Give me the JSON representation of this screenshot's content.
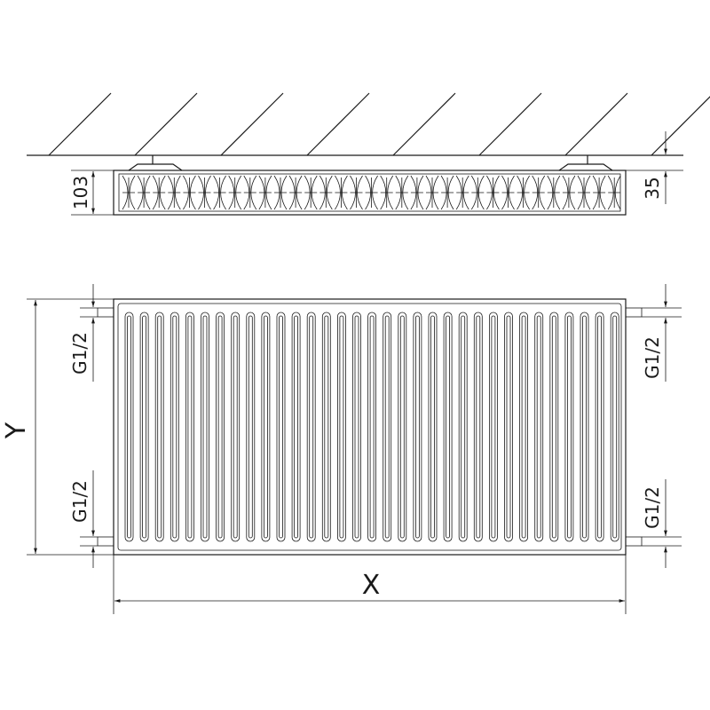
{
  "dimensions": {
    "depth": "103",
    "wall_gap": "35",
    "height": "Y",
    "width": "X",
    "connection_left_top": "G1/2",
    "connection_left_bottom": "G1/2",
    "connection_right_top": "G1/2",
    "connection_right_bottom": "G1/2"
  },
  "colors": {
    "line": "#1a1a1a",
    "background": "#ffffff"
  }
}
